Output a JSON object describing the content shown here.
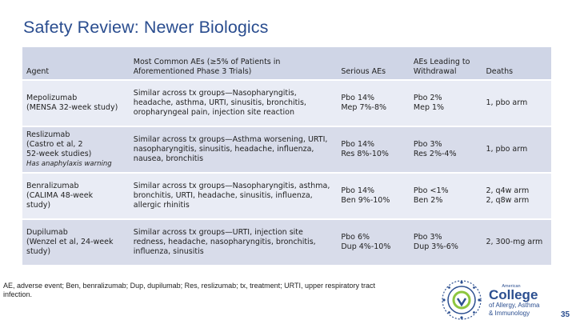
{
  "title": "Safety Review: Newer Biologics",
  "table": {
    "headers": [
      "Agent",
      "Most Common AEs (≥5% of Patients in Aforementioned Phase 3 Trials)",
      "Serious AEs",
      "AEs Leading to Withdrawal",
      "Deaths"
    ],
    "rows": [
      {
        "agent": [
          "Mepolizumab",
          "(MENSA 32-week study)"
        ],
        "warning": "",
        "aes": "Similar across tx groups—Nasopharyngitis, headache, asthma, URTI, sinusitis, bronchitis, oropharyngeal pain, injection site reaction",
        "serious": [
          "Pbo 14%",
          "Mep 7%-8%"
        ],
        "withdrawal": [
          "Pbo 2%",
          "Mep 1%"
        ],
        "deaths": [
          "1, pbo arm"
        ]
      },
      {
        "agent": [
          "Reslizumab",
          "(Castro et al, 2",
          "52-week studies)"
        ],
        "warning": "Has anaphylaxis warning",
        "aes": "Similar across tx groups—Asthma worsening, URTI, nasopharyngitis, sinusitis, headache, influenza, nausea, bronchitis",
        "serious": [
          "Pbo 14%",
          "Res 8%-10%"
        ],
        "withdrawal": [
          "Pbo 3%",
          "Res 2%-4%"
        ],
        "deaths": [
          "1, pbo arm"
        ]
      },
      {
        "agent": [
          "Benralizumab",
          "(CALIMA 48-week",
          "study)"
        ],
        "warning": "",
        "aes": "Similar across tx groups—Nasopharyngitis, asthma, bronchitis, URTI, headache, sinusitis, influenza, allergic rhinitis",
        "serious": [
          "Pbo 14%",
          "Ben 9%-10%"
        ],
        "withdrawal": [
          "Pbo <1%",
          "Ben 2%"
        ],
        "deaths": [
          "2, q4w arm",
          "2, q8w arm"
        ]
      },
      {
        "agent": [
          "Dupilumab",
          "(Wenzel et al, 24-week",
          "study)"
        ],
        "warning": "",
        "aes": "Similar across tx groups—URTI, injection site redness, headache, nasopharyngitis, bronchitis, influenza, sinusitis",
        "serious": [
          "Pbo 6%",
          "Dup 4%-10%"
        ],
        "withdrawal": [
          "Pbo 3%",
          "Dup 3%-6%"
        ],
        "deaths": [
          "2, 300-mg arm"
        ]
      }
    ]
  },
  "footnote": "AE, adverse event; Ben, benralizumab; Dup, dupilumab; Res, reslizumab; tx, treatment; URTI, upper respiratory tract infection.",
  "logo": {
    "top": "American",
    "name": "College",
    "line1": "of Allergy, Asthma",
    "line2": "& Immunology",
    "colors": {
      "blue": "#2c4f90",
      "green": "#8dc63f"
    }
  },
  "slide_number": "35",
  "colors": {
    "title": "#2a4d8f",
    "header_bg": "#cfd5e6",
    "row_light": "#e9ecf5",
    "row_dark": "#d8dcea"
  }
}
